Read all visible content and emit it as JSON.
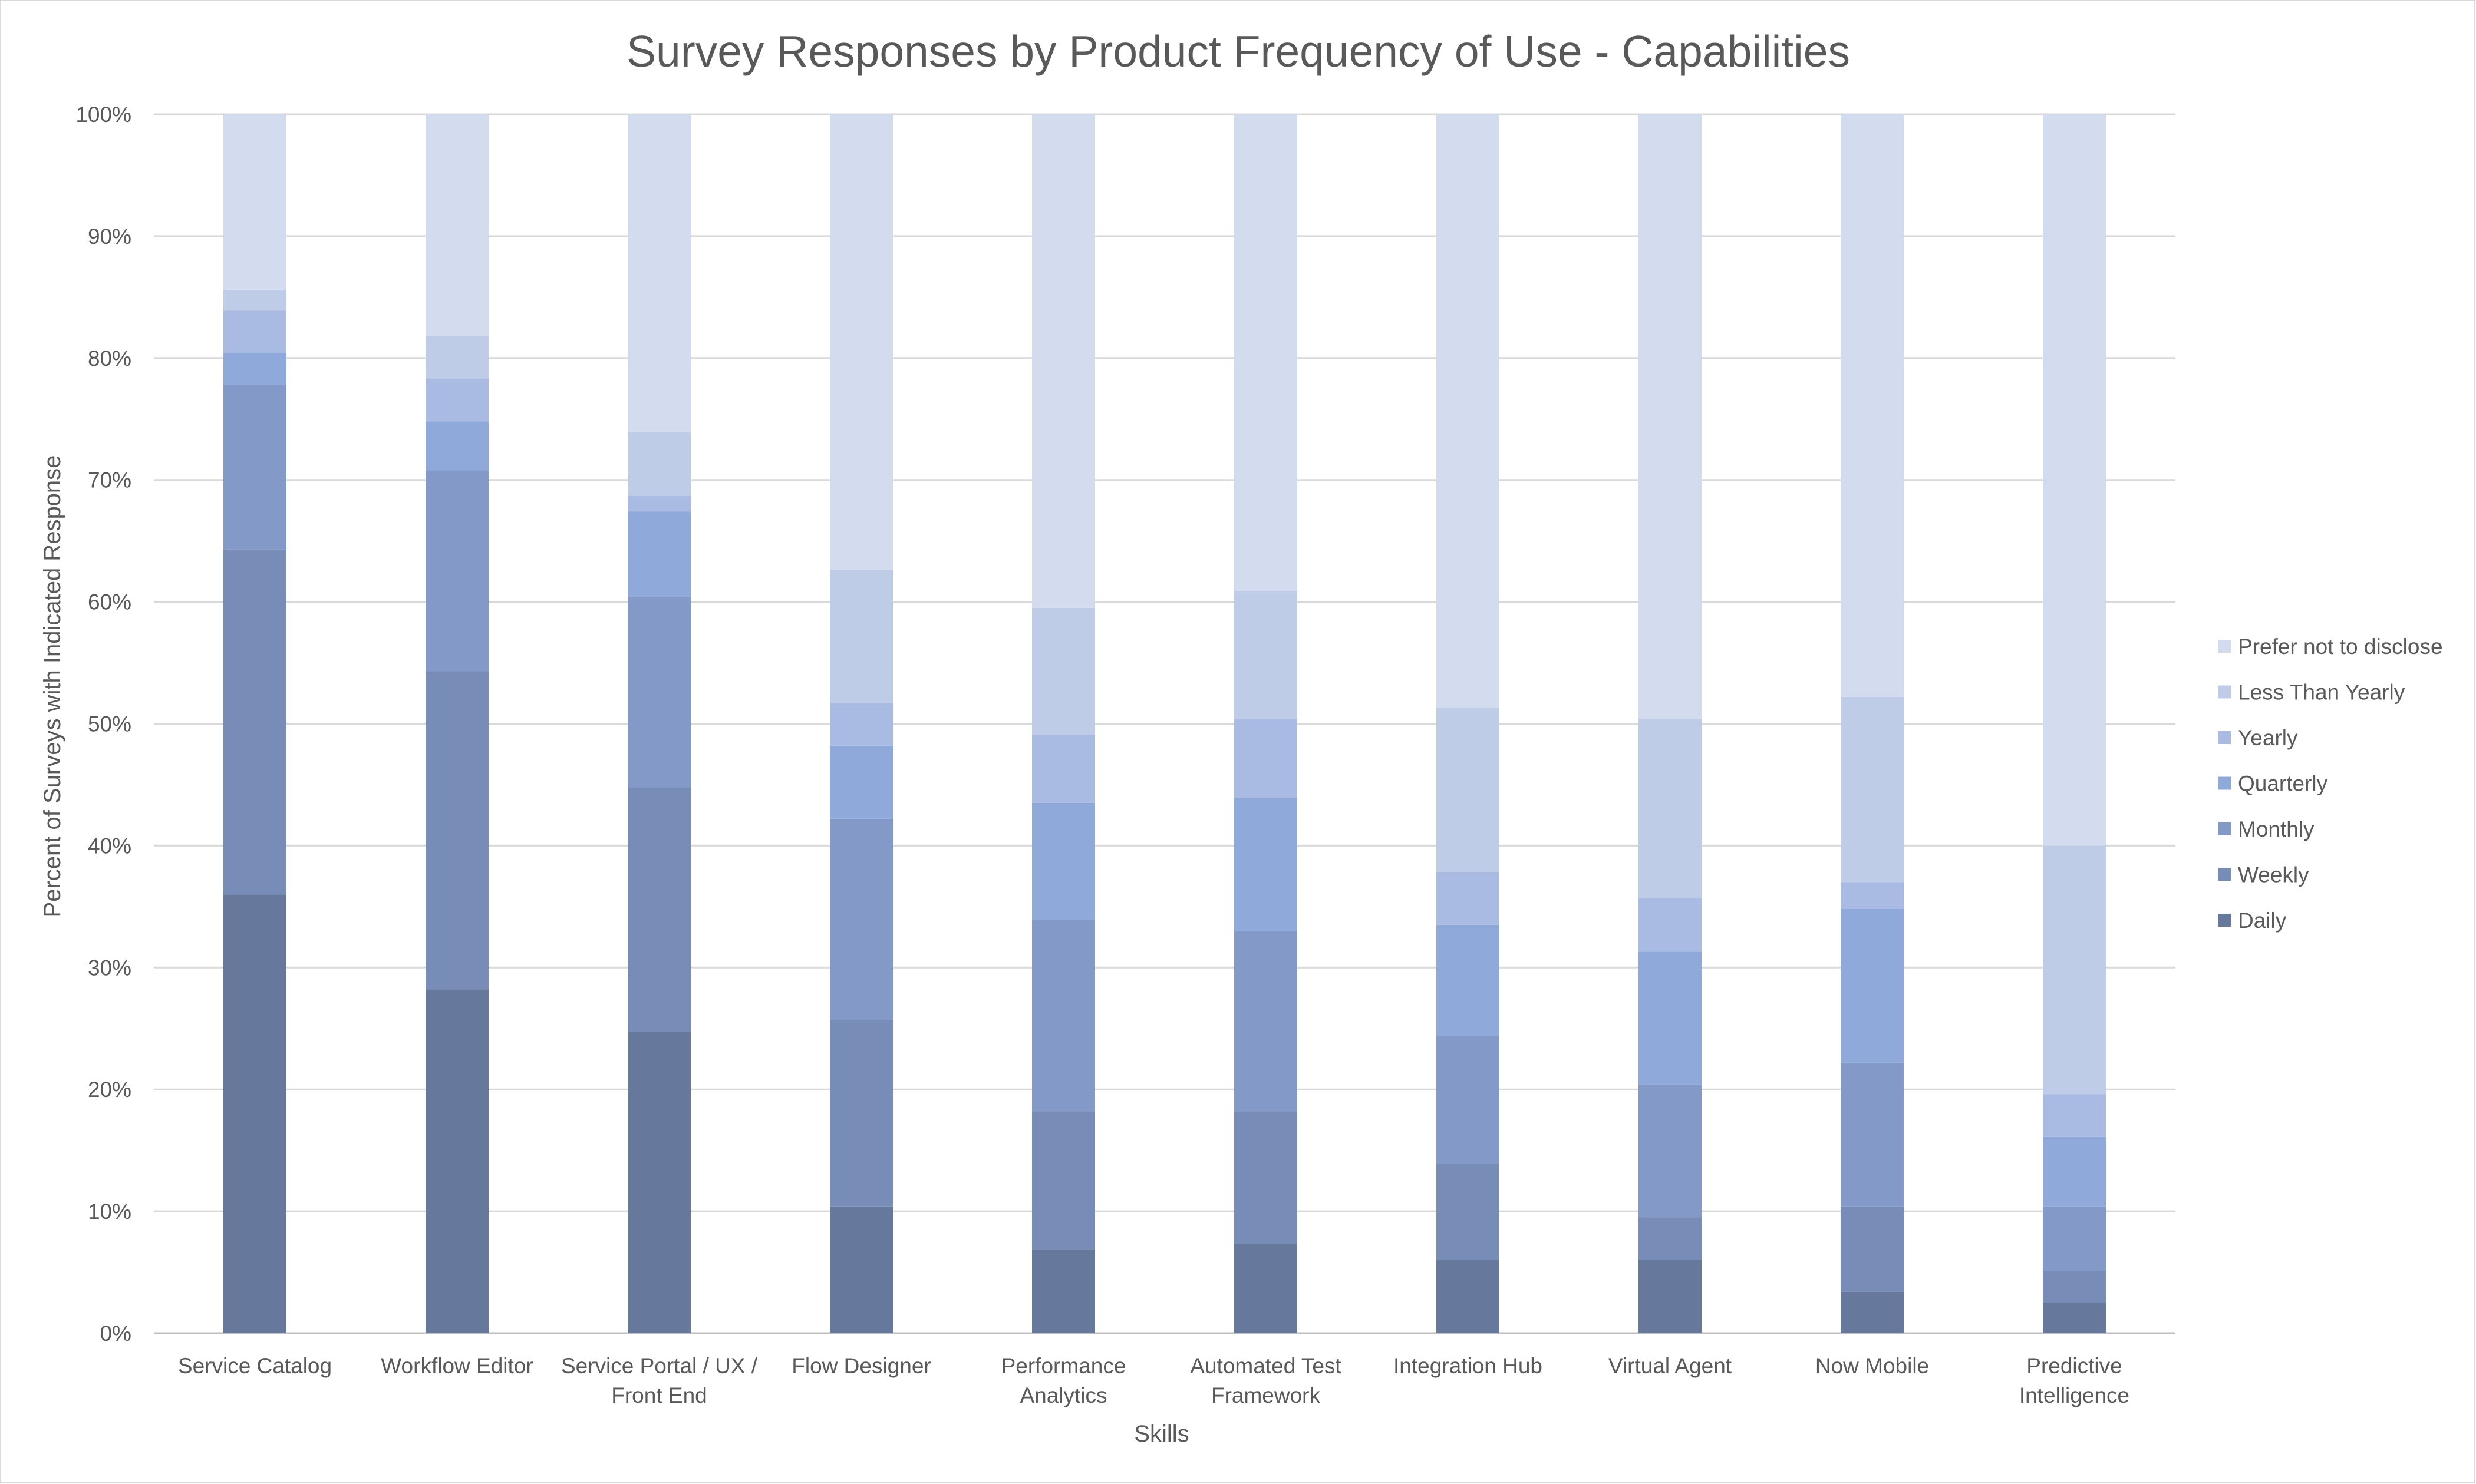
{
  "chart_data": {
    "type": "bar",
    "stacked": true,
    "percent_stacked": true,
    "title": "Survey Responses by Product Frequency of Use - Capabilities",
    "xlabel": "Skills",
    "ylabel": "Percent of Surveys with Indicated Response",
    "ylim": [
      0,
      100
    ],
    "yticks": [
      "0%",
      "10%",
      "20%",
      "30%",
      "40%",
      "50%",
      "60%",
      "70%",
      "80%",
      "90%",
      "100%"
    ],
    "grid": true,
    "legend_position": "right",
    "categories": [
      [
        "Service Catalog"
      ],
      [
        "Workflow Editor"
      ],
      [
        "Service Portal / UX /",
        "Front End"
      ],
      [
        "Flow Designer"
      ],
      [
        "Performance",
        "Analytics"
      ],
      [
        "Automated Test",
        "Framework"
      ],
      [
        "Integration Hub"
      ],
      [
        "Virtual Agent"
      ],
      [
        "Now Mobile"
      ],
      [
        "Predictive",
        "Intelligence"
      ]
    ],
    "series": [
      {
        "name": "Daily",
        "color": "#66799c",
        "values": [
          36.0,
          28.2,
          24.7,
          10.4,
          6.9,
          7.3,
          6.0,
          6.0,
          3.4,
          2.5
        ]
      },
      {
        "name": "Weekly",
        "color": "#778db7",
        "values": [
          28.3,
          26.1,
          20.1,
          15.3,
          11.3,
          10.9,
          7.9,
          3.5,
          7.0,
          2.6
        ]
      },
      {
        "name": "Monthly",
        "color": "#8399c8",
        "values": [
          13.5,
          16.5,
          15.6,
          16.5,
          15.7,
          14.8,
          10.5,
          10.9,
          11.8,
          5.3
        ]
      },
      {
        "name": "Quarterly",
        "color": "#8fa9da",
        "values": [
          2.6,
          4.0,
          7.0,
          6.0,
          9.6,
          10.9,
          9.1,
          10.9,
          12.6,
          5.7
        ]
      },
      {
        "name": "Yearly",
        "color": "#a9bbe2",
        "values": [
          3.5,
          3.5,
          1.3,
          3.5,
          5.6,
          6.5,
          4.3,
          4.4,
          2.2,
          3.5
        ]
      },
      {
        "name": "Less Than Yearly",
        "color": "#bfcce8",
        "values": [
          1.7,
          3.5,
          5.2,
          10.9,
          10.4,
          10.5,
          13.5,
          14.7,
          15.2,
          20.4
        ]
      },
      {
        "name": "Prefer not to disclose",
        "color": "#d3dcef",
        "values": [
          14.4,
          18.2,
          26.1,
          37.4,
          40.5,
          39.1,
          48.7,
          49.6,
          47.8,
          60.0
        ]
      }
    ],
    "legend_order": [
      "Prefer not to disclose",
      "Less Than Yearly",
      "Yearly",
      "Quarterly",
      "Monthly",
      "Weekly",
      "Daily"
    ]
  }
}
